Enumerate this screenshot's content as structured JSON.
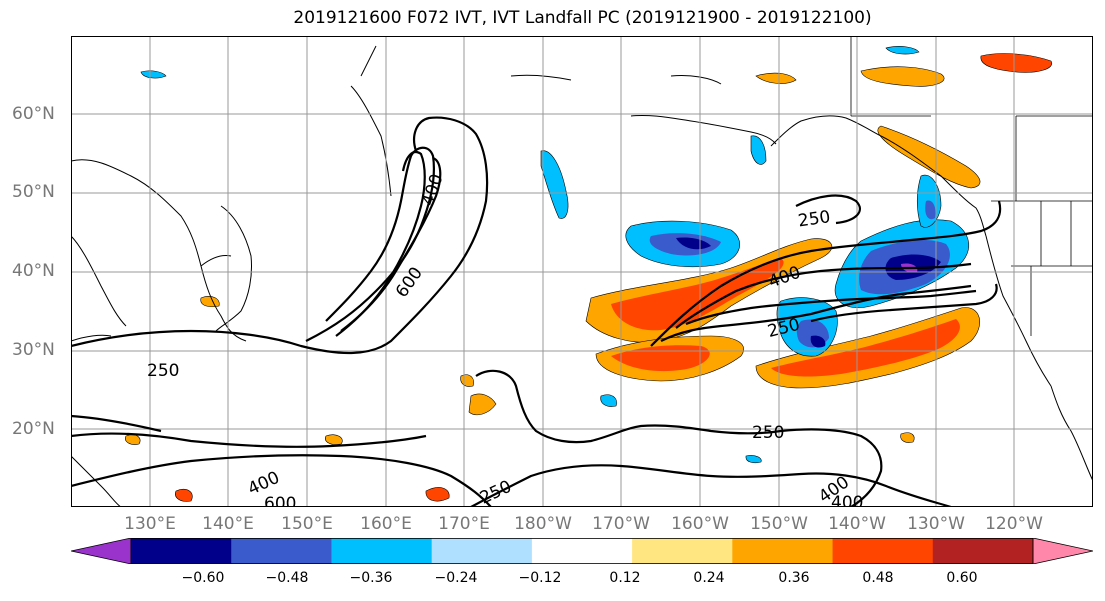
{
  "title": "2019121600 F072 IVT, IVT Landfall PC (2019121900 - 2019122100)",
  "lat_labels": [
    "60°N",
    "50°N",
    "40°N",
    "30°N",
    "20°N"
  ],
  "lon_labels": [
    "130°E",
    "140°E",
    "150°E",
    "160°E",
    "170°E",
    "180°W",
    "170°W",
    "160°W",
    "150°W",
    "140°W",
    "130°W",
    "120°W"
  ],
  "contour_labels": {
    "c400_nw": "400",
    "c600_nw": "600",
    "c250_w": "250",
    "c250_ne": "250",
    "c400_mid": "400",
    "c250_mid": "250",
    "c250_s": "250",
    "c400_sw": "400",
    "c600_sw": "600",
    "c250_sw": "250",
    "c400_se": "400",
    "c400_se2": "400"
  },
  "colorbar": {
    "ticks": [
      "−0.60",
      "−0.48",
      "−0.36",
      "−0.24",
      "−0.12",
      "0.12",
      "0.24",
      "0.36",
      "0.48",
      "0.60"
    ],
    "colors": [
      "#9933cc",
      "#00008b",
      "#3a5bcc",
      "#00bfff",
      "#b0e0ff",
      "#ffffff",
      "#ffe680",
      "#ffa500",
      "#ff4500",
      "#b22222",
      "#ff88aa"
    ]
  }
}
